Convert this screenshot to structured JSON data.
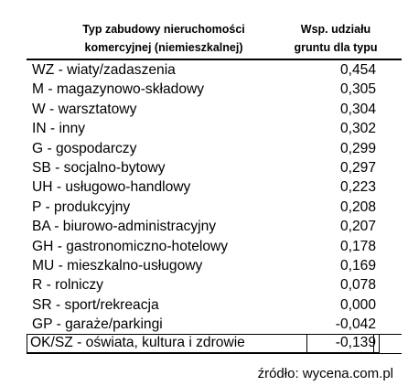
{
  "header": {
    "type_col_line1": "Typ zabudowy nieruchomości",
    "type_col_line2": "komercyjnej (niemieszkalnej)",
    "coef_col_line1": "Wsp. udziału",
    "coef_col_line2": "gruntu dla typu"
  },
  "rows": [
    {
      "label": "WZ - wiaty/zadaszenia",
      "value": "0,454"
    },
    {
      "label": "M - magazynowo-składowy",
      "value": "0,305"
    },
    {
      "label": "W - warsztatowy",
      "value": "0,304"
    },
    {
      "label": "IN - inny",
      "value": "0,302"
    },
    {
      "label": "G - gospodarczy",
      "value": "0,299"
    },
    {
      "label": "SB - socjalno-bytowy",
      "value": "0,297"
    },
    {
      "label": "UH - usługowo-handlowy",
      "value": "0,223"
    },
    {
      "label": "P - produkcyjny",
      "value": "0,208"
    },
    {
      "label": "BA - biurowo-administracyjny",
      "value": "0,207"
    },
    {
      "label": "GH - gastronomiczno-hotelowy",
      "value": "0,178"
    },
    {
      "label": "MU - mieszkalno-usługowy",
      "value": "0,169"
    },
    {
      "label": "R - rolniczy",
      "value": "0,078"
    },
    {
      "label": "SR - sport/rekreacja",
      "value": "0,000"
    },
    {
      "label": "GP - garaże/parkingi",
      "value": "-0,042"
    },
    {
      "label": "OK/SZ - oświata, kultura i zdrowie",
      "value": "-0,139"
    }
  ],
  "source": "źródło: wycena.com.pl"
}
